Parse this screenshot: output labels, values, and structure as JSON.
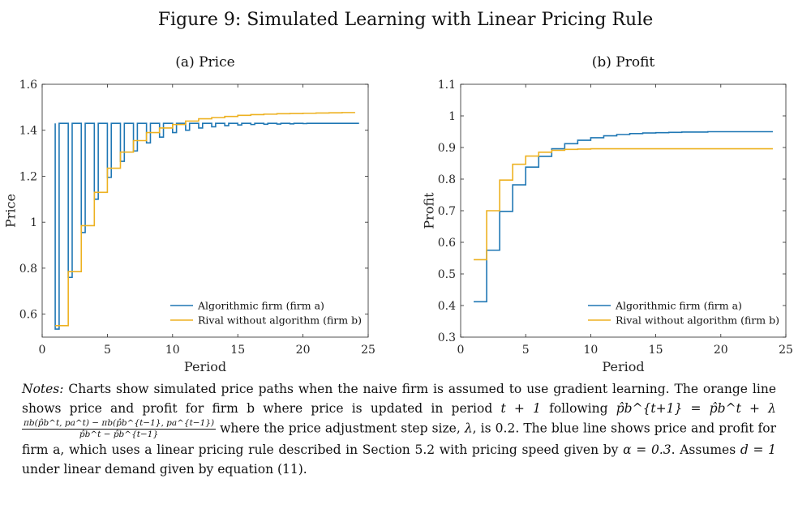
{
  "figure_title": "Figure 9: Simulated Learning with Linear Pricing Rule",
  "colors": {
    "firm_a": "#1f77b4",
    "firm_b": "#edb120",
    "axis": "#262626"
  },
  "chart_data": [
    {
      "type": "line",
      "panel_title": "(a) Price",
      "xlabel": "Period",
      "ylabel": "Price",
      "xlim": [
        0,
        25
      ],
      "ylim": [
        0.5,
        1.6
      ],
      "xticks": [
        0,
        5,
        10,
        15,
        20,
        25
      ],
      "xtick_labels": [
        "0",
        "5",
        "10",
        "15",
        "20",
        "25"
      ],
      "yticks": [
        0.6,
        0.8,
        1.0,
        1.2,
        1.4,
        1.6
      ],
      "ytick_labels": [
        "0.6",
        "0.8",
        "1",
        "1.2",
        "1.4",
        "1.6"
      ],
      "legend_position": "bottom-right",
      "step": true,
      "x": [
        1,
        2,
        3,
        4,
        5,
        6,
        7,
        8,
        9,
        10,
        11,
        12,
        13,
        14,
        15,
        16,
        17,
        18,
        19,
        20,
        21,
        22,
        23,
        24
      ],
      "series": [
        {
          "name": "Algorithmic firm (firm a)",
          "color": "#1f77b4",
          "pattern": "alternating",
          "high": [
            1.43,
            1.43,
            1.43,
            1.43,
            1.43,
            1.43,
            1.43,
            1.43,
            1.43,
            1.43,
            1.43,
            1.43,
            1.43,
            1.43,
            1.43,
            1.43,
            1.43,
            1.43,
            1.43,
            1.43,
            1.43,
            1.43,
            1.43,
            1.43
          ],
          "low": [
            0.535,
            0.76,
            0.955,
            1.1,
            1.195,
            1.265,
            1.31,
            1.345,
            1.37,
            1.39,
            1.4,
            1.41,
            1.415,
            1.42,
            1.423,
            1.425,
            1.426,
            1.427,
            1.428,
            1.429,
            1.43,
            1.43,
            1.43,
            1.43
          ]
        },
        {
          "name": "Rival without algorithm (firm b)",
          "color": "#edb120",
          "values": [
            0.55,
            0.785,
            0.985,
            1.13,
            1.235,
            1.305,
            1.355,
            1.39,
            1.41,
            1.425,
            1.44,
            1.45,
            1.455,
            1.46,
            1.465,
            1.468,
            1.47,
            1.472,
            1.473,
            1.474,
            1.475,
            1.476,
            1.477,
            1.477
          ]
        }
      ]
    },
    {
      "type": "line",
      "panel_title": "(b) Profit",
      "xlabel": "Period",
      "ylabel": "Profit",
      "xlim": [
        0,
        25
      ],
      "ylim": [
        0.3,
        1.1
      ],
      "xticks": [
        0,
        5,
        10,
        15,
        20,
        25
      ],
      "xtick_labels": [
        "0",
        "5",
        "10",
        "15",
        "20",
        "25"
      ],
      "yticks": [
        0.3,
        0.4,
        0.5,
        0.6,
        0.7,
        0.8,
        0.9,
        1.0,
        1.1
      ],
      "ytick_labels": [
        "0.3",
        "0.4",
        "0.5",
        "0.6",
        "0.7",
        "0.8",
        "0.9",
        "1",
        "1.1"
      ],
      "legend_position": "bottom-right",
      "step": true,
      "x": [
        1,
        2,
        3,
        4,
        5,
        6,
        7,
        8,
        9,
        10,
        11,
        12,
        13,
        14,
        15,
        16,
        17,
        18,
        19,
        20,
        21,
        22,
        23,
        24
      ],
      "series": [
        {
          "name": "Algorithmic firm (firm a)",
          "color": "#1f77b4",
          "values": [
            0.412,
            0.575,
            0.698,
            0.782,
            0.838,
            0.872,
            0.896,
            0.912,
            0.923,
            0.931,
            0.937,
            0.941,
            0.944,
            0.946,
            0.947,
            0.948,
            0.949,
            0.949,
            0.95,
            0.95,
            0.95,
            0.95,
            0.95,
            0.95
          ]
        },
        {
          "name": "Rival without algorithm (firm b)",
          "color": "#edb120",
          "values": [
            0.545,
            0.7,
            0.797,
            0.847,
            0.873,
            0.885,
            0.891,
            0.894,
            0.895,
            0.896,
            0.896,
            0.896,
            0.896,
            0.896,
            0.896,
            0.896,
            0.896,
            0.896,
            0.896,
            0.896,
            0.896,
            0.896,
            0.896,
            0.896
          ]
        }
      ]
    }
  ],
  "notes": {
    "lead": "Notes:",
    "s1": " Charts show simulated price paths when the naive firm is assumed to use gradient learning. The orange line shows price and profit for firm b where price is updated in period ",
    "m_t1": "t + 1",
    "s2": " following ",
    "m_update": "p̂b^{t+1} = p̂b^t + λ",
    "m_frac_num": "πb(p̂b^t, pa^t) − πb(p̂b^{t−1}, pa^{t−1})",
    "m_frac_den": "p̂b^t − p̂b^{t−1}",
    "s3": " where the price adjustment step size, ",
    "m_lambda": "λ",
    "s4": ", is 0.2. The blue line shows price and profit for firm a, which uses a linear pricing rule described in Section 5.2 with pricing speed given by ",
    "m_alpha": "α = 0.3",
    "s5": ". Assumes ",
    "m_d": "d = 1",
    "s6": " under linear demand given by equation (11)."
  }
}
